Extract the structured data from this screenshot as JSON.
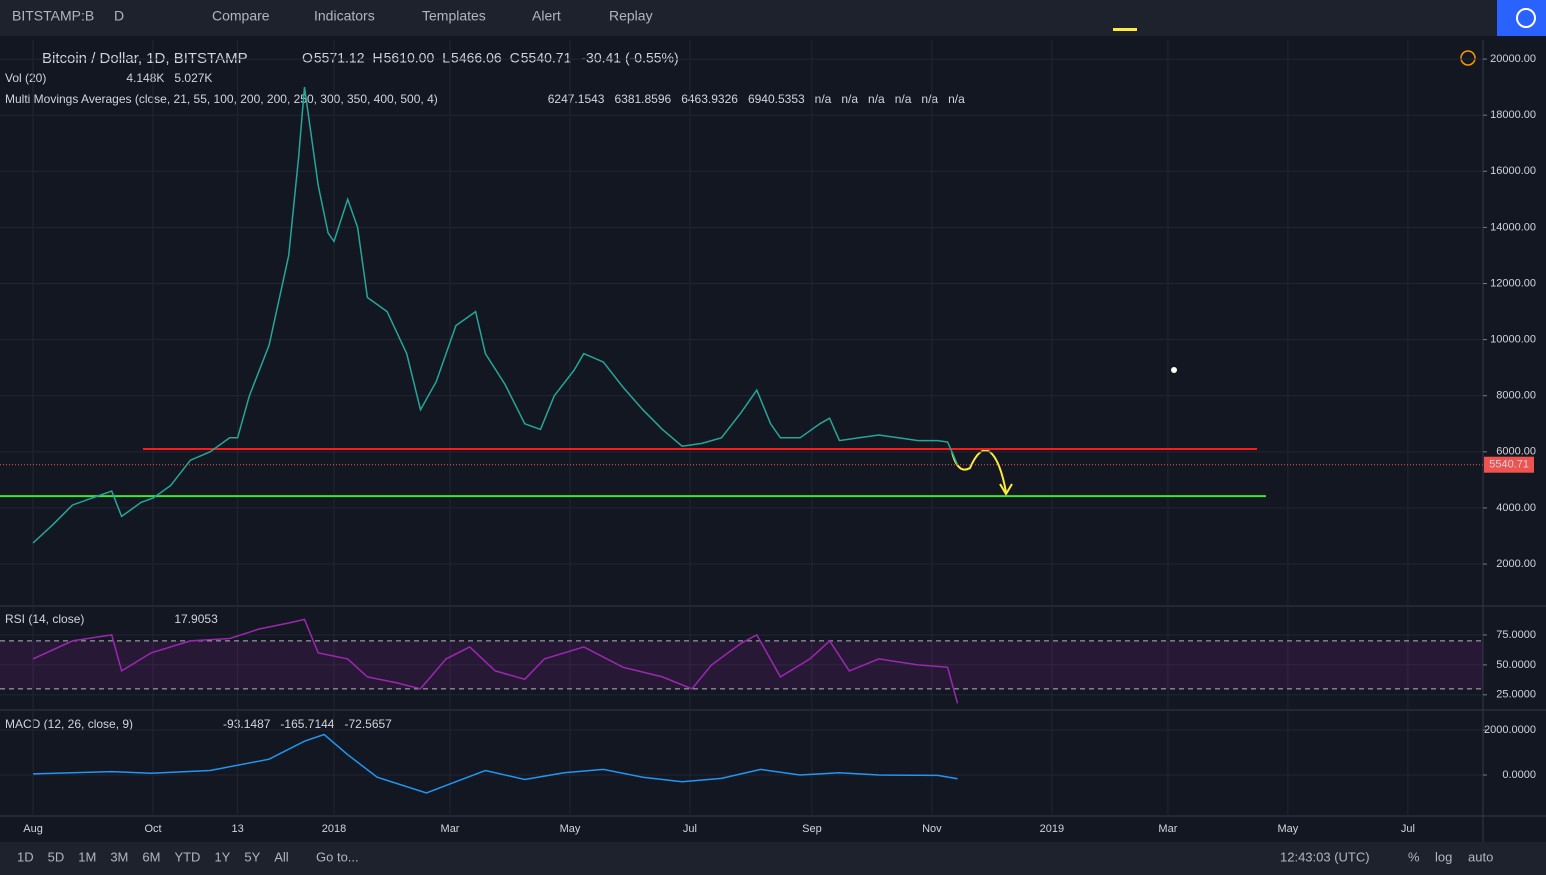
{
  "toolbar": {
    "symbol": "BITSTAMP:B",
    "interval": "D",
    "buttons": [
      "Compare",
      "Indicators",
      "Templates",
      "Alert",
      "Replay"
    ]
  },
  "legend": {
    "symbol": "Bitcoin / Dollar, 1D, BITSTAMP",
    "ohlc": [
      {
        "key": "O",
        "value": "5571.12"
      },
      {
        "key": "H",
        "value": "5610.00"
      },
      {
        "key": "L",
        "value": "5466.06"
      },
      {
        "key": "C",
        "value": "5540.71"
      }
    ],
    "change": "-30.41 (-0.55%)",
    "vol": {
      "title": "Vol (20)",
      "values": [
        {
          "text": "4.148K",
          "color": "#ef5350"
        },
        {
          "text": "5.027K",
          "color": "#ff9800"
        }
      ]
    },
    "ma": {
      "title": "Multi Movings Averages (close, 21, 55, 100, 200, 200, 250, 300, 350, 400, 500, 4)",
      "values": [
        {
          "text": "6247.1543",
          "color": "#e040fb"
        },
        {
          "text": "6381.8596",
          "color": "#ffeb3b"
        },
        {
          "text": "6463.9326",
          "color": "#4caf50"
        },
        {
          "text": "6940.5353",
          "color": "#e53935"
        },
        {
          "text": "n/a",
          "color": "#d1d4dc"
        },
        {
          "text": "n/a",
          "color": "#d1d4dc"
        },
        {
          "text": "n/a",
          "color": "#d1d4dc"
        },
        {
          "text": "n/a",
          "color": "#d1d4dc"
        },
        {
          "text": "n/a",
          "color": "#d1d4dc"
        },
        {
          "text": "n/a",
          "color": "#d1d4dc"
        }
      ]
    },
    "rsi": {
      "title": "RSI (14, close)",
      "values": [
        {
          "text": "17.9053",
          "color": "#9c27b0"
        }
      ]
    },
    "macd": {
      "title": "MACD (12, 26, close, 9)",
      "values": [
        {
          "text": "-93.1487",
          "color": "#00e676"
        },
        {
          "text": "-165.7144",
          "color": "#2196f3"
        },
        {
          "text": "-72.5657",
          "color": "#ff9800"
        }
      ]
    }
  },
  "chart_data": [
    {
      "type": "line",
      "series": [
        {
          "name": "Close",
          "color": "#26a69a",
          "values": [
            2750,
            3400,
            4100,
            4350,
            4600,
            3700,
            4200,
            4350,
            4800,
            5700,
            6000,
            6500,
            6500,
            8000,
            9800,
            13000,
            16500,
            19000,
            15500,
            13800,
            13500,
            15000,
            14000,
            11500,
            11000,
            9500,
            7500,
            8500,
            10500,
            11000,
            9500,
            8400,
            7000,
            6800,
            8000,
            8900,
            9500,
            9200,
            8300,
            7500,
            6800,
            6200,
            6300,
            6500,
            7400,
            8200,
            7000,
            6500,
            6500,
            7000,
            7200,
            6400,
            6500,
            6600,
            6500,
            6400,
            6400,
            6350,
            5540.71
          ]
        }
      ],
      "x": [
        0,
        10,
        20,
        30,
        40,
        45,
        55,
        61,
        70,
        80,
        90,
        100,
        104,
        110,
        120,
        130,
        135,
        138,
        145,
        150,
        153,
        160,
        165,
        170,
        180,
        190,
        197,
        205,
        215,
        225,
        230,
        240,
        250,
        258,
        265,
        275,
        280,
        290,
        300,
        310,
        320,
        330,
        340,
        350,
        360,
        368,
        375,
        380,
        390,
        400,
        405,
        410,
        420,
        430,
        440,
        450,
        460,
        465,
        470
      ],
      "xlim": [
        -16.8,
        737.2
      ],
      "xticks": [
        {
          "value": 0,
          "label": "Aug"
        },
        {
          "value": 61,
          "label": "Oct"
        },
        {
          "value": 104,
          "label": "13"
        },
        {
          "value": 153,
          "label": "2018"
        },
        {
          "value": 212,
          "label": "Mar"
        },
        {
          "value": 273,
          "label": "May"
        },
        {
          "value": 334,
          "label": "Jul"
        },
        {
          "value": 396,
          "label": "Sep"
        },
        {
          "value": 457,
          "label": "Nov"
        },
        {
          "value": 518,
          "label": "2019"
        },
        {
          "value": 577,
          "label": "Mar"
        },
        {
          "value": 638,
          "label": "May"
        },
        {
          "value": 699,
          "label": "Jul"
        }
      ],
      "ylim": [
        540,
        20680
      ],
      "yticks": [
        {
          "value": 2000,
          "label": "2000.00"
        },
        {
          "value": 4000,
          "label": "4000.00"
        },
        {
          "value": 6000,
          "label": "6000.00"
        },
        {
          "value": 8000,
          "label": "8000.00"
        },
        {
          "value": 10000,
          "label": "10000.00"
        },
        {
          "value": 12000,
          "label": "12000.00"
        },
        {
          "value": 14000,
          "label": "14000.00"
        },
        {
          "value": 16000,
          "label": "16000.00"
        },
        {
          "value": 18000,
          "label": "18000.00"
        },
        {
          "value": 20000,
          "label": "20000.00"
        }
      ],
      "last_price": {
        "value": 5540.71,
        "label": "5540.71",
        "color": "#ef5350"
      },
      "hlines": [
        {
          "value": 6100,
          "color": "#ff1a1a"
        },
        {
          "value": 4420,
          "color": "#39e639"
        }
      ]
    },
    {
      "type": "line",
      "series": [
        {
          "name": "RSI",
          "color": "#9c27b0",
          "values": [
            55,
            70,
            75,
            45,
            60,
            70,
            72,
            80,
            85,
            88,
            60,
            55,
            40,
            35,
            30,
            55,
            65,
            45,
            38,
            55,
            65,
            48,
            40,
            30,
            50,
            68,
            75,
            40,
            55,
            70,
            45,
            55,
            50,
            48,
            17.9053
          ]
        }
      ],
      "x": [
        0,
        20,
        40,
        45,
        60,
        80,
        100,
        115,
        130,
        138,
        145,
        160,
        170,
        185,
        197,
        210,
        222,
        235,
        250,
        260,
        280,
        300,
        320,
        335,
        345,
        360,
        368,
        380,
        395,
        405,
        415,
        430,
        450,
        465,
        470
      ],
      "ylim": [
        14,
        97.5
      ],
      "yticks": [
        {
          "value": 25,
          "label": "25.0000"
        },
        {
          "value": 50,
          "label": "50.0000"
        },
        {
          "value": 75,
          "label": "75.0000"
        }
      ],
      "bands": [
        30,
        70
      ]
    },
    {
      "type": "line",
      "series": [
        {
          "name": "MACD",
          "color": "#2196f3",
          "values": [
            50,
            150,
            80,
            200,
            700,
            1500,
            1800,
            900,
            -100,
            -800,
            -300,
            200,
            -200,
            100,
            250,
            -100,
            -300,
            -150,
            250,
            0,
            100,
            0,
            -20,
            -165.7144
          ]
        }
      ],
      "x": [
        0,
        40,
        60,
        90,
        120,
        138,
        148,
        160,
        175,
        200,
        215,
        230,
        250,
        270,
        290,
        310,
        330,
        350,
        370,
        390,
        410,
        430,
        460,
        470
      ],
      "ylim": [
        -1778,
        2800
      ],
      "yticks": [
        {
          "value": 0,
          "label": "0.0000"
        },
        {
          "value": 2000,
          "label": "2000.0000"
        }
      ]
    }
  ],
  "bottom_bar": {
    "ranges": [
      "1D",
      "5D",
      "1M",
      "3M",
      "6M",
      "YTD",
      "1Y",
      "5Y",
      "All"
    ],
    "goto": "Go to...",
    "clock": "12:43:03 (UTC)",
    "options": [
      "%",
      "log",
      "auto"
    ]
  }
}
